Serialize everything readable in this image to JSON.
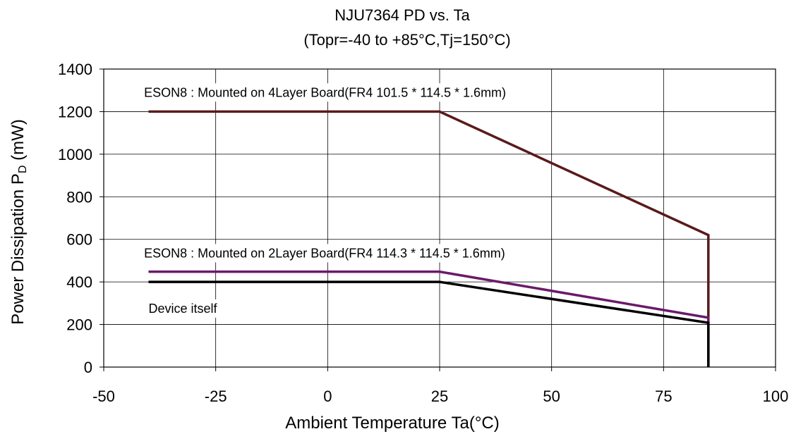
{
  "chart_data": {
    "type": "line",
    "title": "NJU7364 PD vs. Ta",
    "subtitle": "(Topr=-40 to +85°C,Tj=150°C)",
    "xlabel": "Ambient Temperature Ta(°C)",
    "ylabel": {
      "main": "Power Dissipation  P",
      "sub": "D",
      "unit": " (mW)"
    },
    "xlim": [
      -50,
      100
    ],
    "ylim": [
      0,
      1400
    ],
    "xticks": [
      -50,
      -25,
      0,
      25,
      50,
      75,
      100
    ],
    "yticks": [
      0,
      200,
      400,
      600,
      800,
      1000,
      1200,
      1400
    ],
    "grid": true,
    "series": [
      {
        "color": "#5a1a1a",
        "x": [
          -40,
          25,
          85,
          85
        ],
        "y": [
          1200,
          1200,
          620,
          0
        ]
      },
      {
        "color": "#6a1a6a",
        "x": [
          -40,
          25,
          85,
          85
        ],
        "y": [
          448,
          448,
          232,
          0
        ]
      },
      {
        "color": "#000000",
        "x": [
          -40,
          25,
          85,
          85
        ],
        "y": [
          400,
          400,
          208,
          0
        ]
      }
    ],
    "annotations": [
      {
        "text": "ESON8 : Mounted on 4Layer Board(FR4 101.5 * 114.5 * 1.6mm)",
        "x": -41,
        "y": 1270
      },
      {
        "text": "ESON8 : Mounted on 2Layer Board(FR4 114.3 * 114.5 * 1.6mm)",
        "x": -41,
        "y": 515
      },
      {
        "text": "Device itself",
        "x": -40,
        "y": 255
      }
    ]
  }
}
